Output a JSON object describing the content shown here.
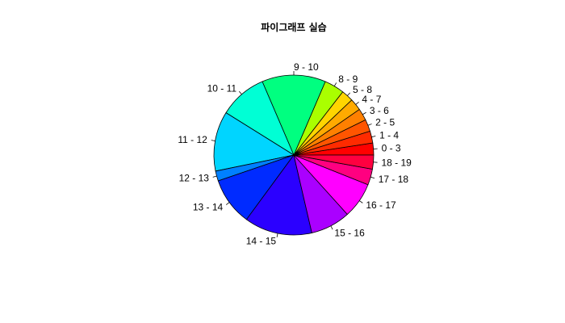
{
  "chart_data": {
    "type": "pie",
    "title": "파이그래프 실습",
    "direction": "counterclockwise",
    "start_position": "3 o'clock",
    "slices": [
      {
        "label": "0 - 3",
        "value": 3,
        "color": "#FF0000"
      },
      {
        "label": "1 - 4",
        "value": 3,
        "color": "#FF2B00"
      },
      {
        "label": "2 - 5",
        "value": 3,
        "color": "#FF5500"
      },
      {
        "label": "3 - 6",
        "value": 3,
        "color": "#FF8000"
      },
      {
        "label": "4 - 7",
        "value": 3,
        "color": "#FFAA00"
      },
      {
        "label": "5 - 8",
        "value": 3,
        "color": "#FFD500"
      },
      {
        "label": "8 - 9",
        "value": 5,
        "color": "#AAFF00"
      },
      {
        "label": "9 - 10",
        "value": 16,
        "color": "#00FF80"
      },
      {
        "label": "10 - 11",
        "value": 12,
        "color": "#00FFD5"
      },
      {
        "label": "11 - 12",
        "value": 15,
        "color": "#00D5FF"
      },
      {
        "label": "12 - 13",
        "value": 2.5,
        "color": "#0080FF"
      },
      {
        "label": "13 - 14",
        "value": 12,
        "color": "#002BFF"
      },
      {
        "label": "14 - 15",
        "value": 17,
        "color": "#2B00FF"
      },
      {
        "label": "15 - 16",
        "value": 10,
        "color": "#AA00FF"
      },
      {
        "label": "16 - 17",
        "value": 9,
        "color": "#FF00FF"
      },
      {
        "label": "17 - 18",
        "value": 4,
        "color": "#FF0080"
      },
      {
        "label": "18 - 19",
        "value": 3.5,
        "color": "#FF0040"
      }
    ]
  }
}
